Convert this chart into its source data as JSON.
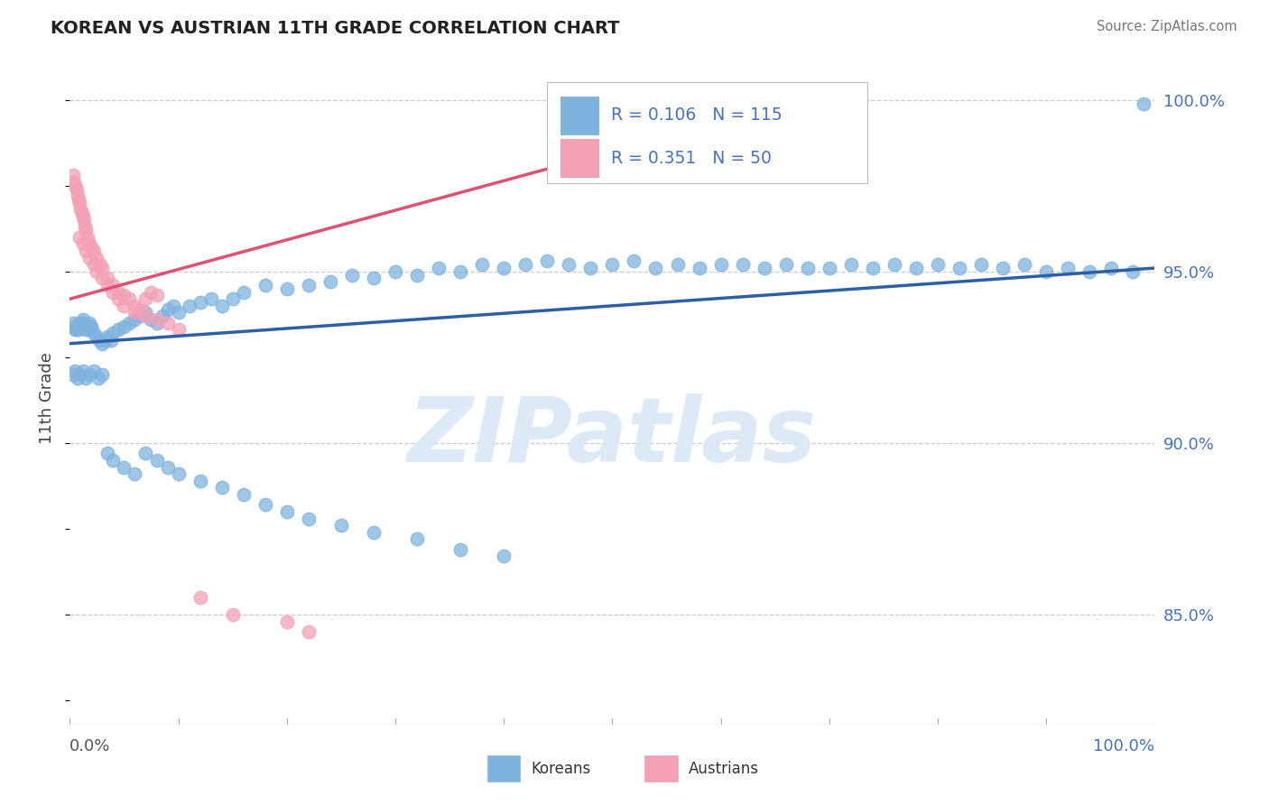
{
  "title": "KOREAN VS AUSTRIAN 11TH GRADE CORRELATION CHART",
  "source_text": "Source: ZipAtlas.com",
  "ylabel": "11th Grade",
  "right_ytick_labels": [
    "100.0%",
    "95.0%",
    "90.0%",
    "85.0%"
  ],
  "right_ytick_values": [
    1.0,
    0.95,
    0.9,
    0.85
  ],
  "xmin": 0.0,
  "xmax": 1.0,
  "ymin": 0.818,
  "ymax": 1.008,
  "watermark": "ZIPatlas",
  "legend_r_blue": "R = 0.106",
  "legend_n_blue": "N = 115",
  "legend_r_pink": "R = 0.351",
  "legend_n_pink": "N = 50",
  "koreans_label": "Koreans",
  "austrians_label": "Austrians",
  "blue_color": "#7eb3e0",
  "pink_color": "#f4a0b5",
  "blue_line_color": "#2d5fa6",
  "pink_line_color": "#e05070",
  "tick_color": "#4472c4",
  "blue_line_x0": 0.0,
  "blue_line_x1": 1.0,
  "blue_line_y0": 0.929,
  "blue_line_y1": 0.951,
  "pink_line_x0": 0.0,
  "pink_line_x1": 0.72,
  "pink_line_y0": 0.942,
  "pink_line_y1": 1.004,
  "blue_x": [
    0.003,
    0.004,
    0.005,
    0.006,
    0.007,
    0.008,
    0.009,
    0.01,
    0.011,
    0.012,
    0.013,
    0.014,
    0.015,
    0.016,
    0.017,
    0.018,
    0.019,
    0.02,
    0.022,
    0.025,
    0.027,
    0.03,
    0.033,
    0.035,
    0.038,
    0.04,
    0.045,
    0.05,
    0.055,
    0.06,
    0.065,
    0.07,
    0.075,
    0.08,
    0.085,
    0.09,
    0.095,
    0.1,
    0.11,
    0.12,
    0.13,
    0.14,
    0.15,
    0.16,
    0.18,
    0.2,
    0.22,
    0.24,
    0.26,
    0.28,
    0.3,
    0.32,
    0.34,
    0.36,
    0.38,
    0.4,
    0.42,
    0.44,
    0.46,
    0.48,
    0.5,
    0.52,
    0.54,
    0.56,
    0.58,
    0.6,
    0.62,
    0.64,
    0.66,
    0.68,
    0.7,
    0.72,
    0.74,
    0.76,
    0.78,
    0.8,
    0.82,
    0.84,
    0.86,
    0.88,
    0.9,
    0.92,
    0.94,
    0.96,
    0.98,
    0.99,
    0.003,
    0.005,
    0.007,
    0.009,
    0.012,
    0.015,
    0.018,
    0.022,
    0.026,
    0.03,
    0.035,
    0.04,
    0.05,
    0.06,
    0.07,
    0.08,
    0.09,
    0.1,
    0.12,
    0.14,
    0.16,
    0.18,
    0.2,
    0.22,
    0.25,
    0.28,
    0.32,
    0.36,
    0.4
  ],
  "blue_y": [
    0.935,
    0.934,
    0.933,
    0.933,
    0.934,
    0.933,
    0.935,
    0.934,
    0.935,
    0.936,
    0.935,
    0.934,
    0.933,
    0.934,
    0.933,
    0.935,
    0.934,
    0.934,
    0.932,
    0.931,
    0.93,
    0.929,
    0.93,
    0.931,
    0.93,
    0.932,
    0.933,
    0.934,
    0.935,
    0.936,
    0.937,
    0.938,
    0.936,
    0.935,
    0.937,
    0.939,
    0.94,
    0.938,
    0.94,
    0.941,
    0.942,
    0.94,
    0.942,
    0.944,
    0.946,
    0.945,
    0.946,
    0.947,
    0.949,
    0.948,
    0.95,
    0.949,
    0.951,
    0.95,
    0.952,
    0.951,
    0.952,
    0.953,
    0.952,
    0.951,
    0.952,
    0.953,
    0.951,
    0.952,
    0.951,
    0.952,
    0.952,
    0.951,
    0.952,
    0.951,
    0.951,
    0.952,
    0.951,
    0.952,
    0.951,
    0.952,
    0.951,
    0.952,
    0.951,
    0.952,
    0.95,
    0.951,
    0.95,
    0.951,
    0.95,
    0.999,
    0.92,
    0.921,
    0.919,
    0.92,
    0.921,
    0.919,
    0.92,
    0.921,
    0.919,
    0.92,
    0.897,
    0.895,
    0.893,
    0.891,
    0.897,
    0.895,
    0.893,
    0.891,
    0.889,
    0.887,
    0.885,
    0.882,
    0.88,
    0.878,
    0.876,
    0.874,
    0.872,
    0.869,
    0.867
  ],
  "pink_x": [
    0.003,
    0.004,
    0.005,
    0.006,
    0.007,
    0.008,
    0.009,
    0.01,
    0.011,
    0.012,
    0.013,
    0.014,
    0.015,
    0.016,
    0.018,
    0.02,
    0.022,
    0.025,
    0.028,
    0.03,
    0.035,
    0.04,
    0.045,
    0.05,
    0.055,
    0.06,
    0.065,
    0.07,
    0.075,
    0.08,
    0.009,
    0.012,
    0.015,
    0.018,
    0.022,
    0.025,
    0.03,
    0.035,
    0.04,
    0.045,
    0.05,
    0.06,
    0.07,
    0.08,
    0.09,
    0.1,
    0.12,
    0.15,
    0.2,
    0.22
  ],
  "pink_y": [
    0.978,
    0.976,
    0.975,
    0.974,
    0.972,
    0.971,
    0.97,
    0.968,
    0.967,
    0.966,
    0.965,
    0.963,
    0.962,
    0.96,
    0.958,
    0.957,
    0.956,
    0.954,
    0.952,
    0.951,
    0.948,
    0.946,
    0.944,
    0.943,
    0.942,
    0.94,
    0.939,
    0.942,
    0.944,
    0.943,
    0.96,
    0.958,
    0.956,
    0.954,
    0.952,
    0.95,
    0.948,
    0.946,
    0.944,
    0.942,
    0.94,
    0.938,
    0.937,
    0.936,
    0.935,
    0.933,
    0.855,
    0.85,
    0.848,
    0.845
  ]
}
